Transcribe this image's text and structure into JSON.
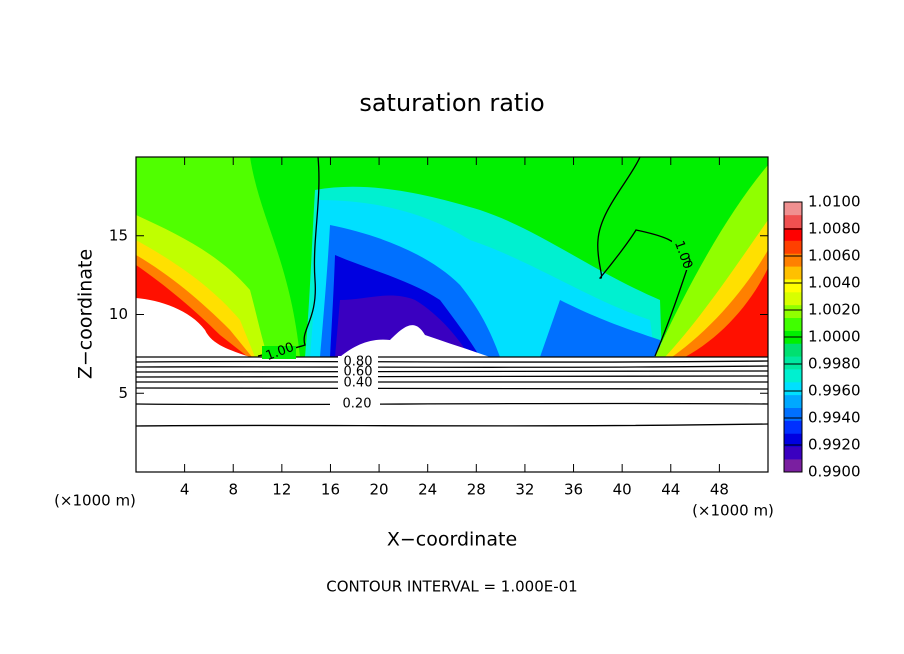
{
  "chart_data": {
    "type": "contour",
    "title": "saturation ratio",
    "x_label": "X−coordinate",
    "y_label": "Z−coordinate",
    "x_unit": "(×1000 m)",
    "xlim": [
      0,
      52
    ],
    "xticks": [
      4,
      8,
      12,
      16,
      20,
      24,
      28,
      32,
      36,
      40,
      44,
      48
    ],
    "ylim": [
      0,
      20
    ],
    "yticks": [
      5,
      10,
      15
    ],
    "colorbar": {
      "lim": [
        0.99,
        1.01
      ],
      "ticks": [
        {
          "value": 0.99,
          "label": "0.9900"
        },
        {
          "value": 0.992,
          "label": "0.9920"
        },
        {
          "value": 0.994,
          "label": "0.9940"
        },
        {
          "value": 0.996,
          "label": "0.9960"
        },
        {
          "value": 0.998,
          "label": "0.9980"
        },
        {
          "value": 1.0,
          "label": "1.0000"
        },
        {
          "value": 1.002,
          "label": "1.0020"
        },
        {
          "value": 1.004,
          "label": "1.0040"
        },
        {
          "value": 1.006,
          "label": "1.0060"
        },
        {
          "value": 1.008,
          "label": "1.0080"
        },
        {
          "value": 1.01,
          "label": "1.0100"
        }
      ],
      "colors": [
        "#7a1fa0",
        "#3a00c0",
        "#0000e0",
        "#0030ff",
        "#0070ff",
        "#00a8ff",
        "#00e0ff",
        "#00f0d0",
        "#00e8a0",
        "#00e070",
        "#00f000",
        "#40ff00",
        "#90ff00",
        "#d8ff00",
        "#ffff00",
        "#ffc000",
        "#ff8000",
        "#ff4000",
        "#ff0000",
        "#f05050",
        "#f09090"
      ]
    },
    "contour_labels": [
      "1.00",
      "1.00",
      "0.80",
      "0.60",
      "0.40",
      "0.20"
    ],
    "note": "CONTOUR INTERVAL = 1.000E-01"
  }
}
